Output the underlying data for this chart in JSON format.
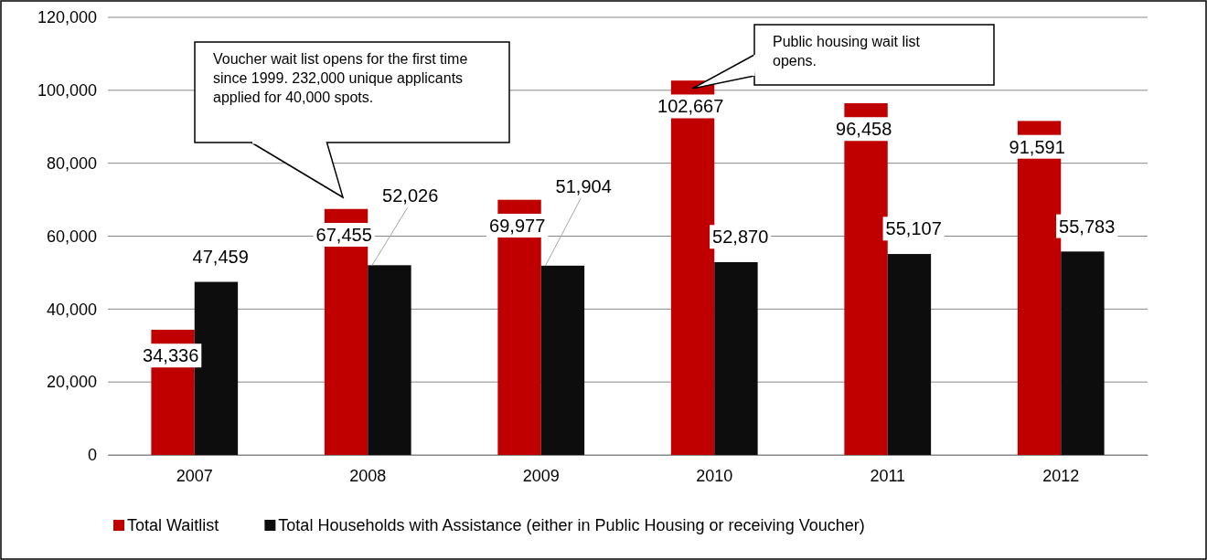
{
  "chart_data": {
    "type": "bar",
    "categories": [
      "2007",
      "2008",
      "2009",
      "2010",
      "2011",
      "2012"
    ],
    "series": [
      {
        "name": "Total Waitlist",
        "color": "#c00000",
        "values": [
          34336,
          67455,
          69977,
          102667,
          96458,
          91591
        ],
        "value_labels": [
          "34,336",
          "67,455",
          "69,977",
          "102,667",
          "96,458",
          "91,591"
        ]
      },
      {
        "name": "Total Households with Assistance (either in Public Housing or receiving Voucher)",
        "color": "#0d0d0d",
        "values": [
          47459,
          52026,
          51904,
          52870,
          55107,
          55783
        ],
        "value_labels": [
          "47,459",
          "52,026",
          "51,904",
          "52,870",
          "55,107",
          "55,783"
        ]
      }
    ],
    "ylim": [
      0,
      120000
    ],
    "yticks": [
      {
        "value": 0,
        "label": "0"
      },
      {
        "value": 20000,
        "label": "20,000"
      },
      {
        "value": 40000,
        "label": "40,000"
      },
      {
        "value": 60000,
        "label": "60,000"
      },
      {
        "value": 80000,
        "label": "80,000"
      },
      {
        "value": 100000,
        "label": "100,000"
      },
      {
        "value": 120000,
        "label": "120,000"
      }
    ],
    "grid": "y",
    "legend": "bottom",
    "data_labels": true,
    "annotations": [
      "Voucher wait list opens for the first time since 1999. 232,000 unique applicants applied for 40,000 spots.",
      "Public housing wait list opens."
    ]
  }
}
